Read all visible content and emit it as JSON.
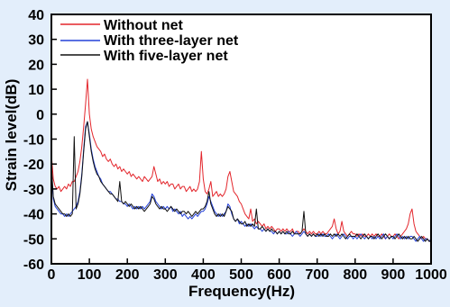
{
  "colors": {
    "background": "#e3eefb",
    "plot_background": "#ffffff",
    "axis": "#000000"
  },
  "chart_data": {
    "type": "line",
    "xlabel": "Frequency(Hz)",
    "ylabel": "Strain level(dB)",
    "xlim": [
      0,
      1000
    ],
    "ylim": [
      -60,
      40
    ],
    "xticks": [
      0,
      100,
      200,
      300,
      400,
      500,
      600,
      700,
      800,
      900,
      1000
    ],
    "yticks": [
      40,
      30,
      20,
      10,
      0,
      -10,
      -20,
      -30,
      -40,
      -50,
      -60
    ],
    "grid": false,
    "legend": "top-left",
    "x": [
      0,
      5,
      10,
      15,
      20,
      25,
      30,
      35,
      40,
      45,
      50,
      55,
      60,
      65,
      70,
      75,
      80,
      85,
      90,
      95,
      100,
      105,
      110,
      115,
      120,
      125,
      130,
      135,
      140,
      145,
      150,
      155,
      160,
      165,
      170,
      175,
      180,
      185,
      190,
      195,
      200,
      205,
      210,
      215,
      220,
      225,
      230,
      235,
      240,
      245,
      250,
      255,
      260,
      265,
      270,
      275,
      280,
      285,
      290,
      295,
      300,
      305,
      310,
      315,
      320,
      325,
      330,
      335,
      340,
      345,
      350,
      355,
      360,
      365,
      370,
      375,
      380,
      385,
      390,
      395,
      400,
      405,
      410,
      415,
      420,
      425,
      430,
      435,
      440,
      445,
      450,
      455,
      460,
      465,
      470,
      475,
      480,
      485,
      490,
      495,
      500,
      505,
      510,
      515,
      520,
      525,
      530,
      535,
      540,
      545,
      550,
      555,
      560,
      565,
      570,
      575,
      580,
      585,
      590,
      595,
      600,
      605,
      610,
      615,
      620,
      625,
      630,
      635,
      640,
      645,
      650,
      655,
      660,
      665,
      670,
      675,
      680,
      685,
      690,
      695,
      700,
      705,
      710,
      715,
      720,
      725,
      730,
      735,
      740,
      745,
      750,
      755,
      760,
      765,
      770,
      775,
      780,
      785,
      790,
      795,
      800,
      805,
      810,
      815,
      820,
      825,
      830,
      835,
      840,
      845,
      850,
      855,
      860,
      865,
      870,
      875,
      880,
      885,
      890,
      895,
      900,
      905,
      910,
      915,
      920,
      925,
      930,
      935,
      940,
      945,
      950,
      955,
      960,
      965,
      970,
      975,
      980,
      985,
      990,
      995,
      1000
    ],
    "series": [
      {
        "name": "Without net",
        "color": "#e3262c",
        "values": [
          -16,
          -26,
          -29,
          -30,
          -29,
          -31,
          -30,
          -29,
          -30,
          -28,
          -29,
          -27,
          -27,
          -25,
          -23,
          -19,
          -13,
          -5,
          4,
          14,
          0,
          -6,
          -9,
          -11,
          -13,
          -14,
          -15,
          -17,
          -16,
          -18,
          -19,
          -18,
          -20,
          -21,
          -20,
          -22,
          -21,
          -23,
          -22,
          -23,
          -24,
          -23,
          -25,
          -24,
          -25,
          -26,
          -25,
          -26,
          -27,
          -25,
          -26,
          -27,
          -26,
          -25,
          -21,
          -24,
          -27,
          -26,
          -28,
          -27,
          -28,
          -27,
          -29,
          -28,
          -28,
          -30,
          -29,
          -28,
          -30,
          -29,
          -29,
          -31,
          -30,
          -29,
          -31,
          -30,
          -31,
          -30,
          -27,
          -15,
          -26,
          -31,
          -32,
          -30,
          -27,
          -33,
          -32,
          -31,
          -33,
          -32,
          -33,
          -32,
          -30,
          -25,
          -23,
          -27,
          -31,
          -32,
          -33,
          -35,
          -36,
          -38,
          -40,
          -41,
          -42,
          -38,
          -43,
          -42,
          -44,
          -43,
          -44,
          -45,
          -44,
          -46,
          -45,
          -46,
          -45,
          -46,
          -47,
          -46,
          -46,
          -47,
          -46,
          -47,
          -46,
          -47,
          -47,
          -46,
          -48,
          -47,
          -47,
          -48,
          -47,
          -46,
          -47,
          -48,
          -47,
          -48,
          -47,
          -48,
          -48,
          -47,
          -48,
          -47,
          -48,
          -48,
          -47,
          -46,
          -45,
          -42,
          -46,
          -48,
          -47,
          -43,
          -47,
          -48,
          -49,
          -48,
          -47,
          -48,
          -48,
          -49,
          -48,
          -49,
          -48,
          -49,
          -49,
          -48,
          -49,
          -48,
          -49,
          -48,
          -49,
          -49,
          -48,
          -49,
          -50,
          -49,
          -48,
          -49,
          -49,
          -48,
          -49,
          -50,
          -49,
          -48,
          -47,
          -46,
          -44,
          -40,
          -38,
          -44,
          -47,
          -48,
          -49,
          -50,
          -49,
          -50,
          -50,
          -51,
          -50
        ]
      },
      {
        "name": "With three-layer net",
        "color": "#2340d8",
        "values": [
          -22,
          -34,
          -37,
          -38,
          -39,
          -40,
          -40,
          -41,
          -40,
          -41,
          -40,
          -39,
          -38,
          -37,
          -35,
          -31,
          -24,
          -14,
          -5,
          -3,
          -8,
          -14,
          -18,
          -21,
          -23,
          -25,
          -26,
          -28,
          -29,
          -30,
          -31,
          -31,
          -32,
          -33,
          -34,
          -34,
          -35,
          -35,
          -36,
          -36,
          -37,
          -36,
          -37,
          -38,
          -37,
          -38,
          -37,
          -38,
          -37,
          -38,
          -37,
          -36,
          -35,
          -32,
          -33,
          -35,
          -36,
          -37,
          -38,
          -37,
          -38,
          -37,
          -38,
          -37,
          -39,
          -38,
          -39,
          -40,
          -39,
          -41,
          -40,
          -41,
          -42,
          -41,
          -42,
          -41,
          -40,
          -41,
          -40,
          -39,
          -39,
          -38,
          -36,
          -33,
          -35,
          -37,
          -39,
          -40,
          -41,
          -40,
          -41,
          -40,
          -39,
          -36,
          -37,
          -40,
          -42,
          -43,
          -42,
          -44,
          -43,
          -44,
          -45,
          -44,
          -45,
          -44,
          -45,
          -46,
          -45,
          -46,
          -46,
          -47,
          -46,
          -47,
          -46,
          -47,
          -47,
          -48,
          -47,
          -48,
          -47,
          -48,
          -47,
          -48,
          -48,
          -47,
          -48,
          -49,
          -48,
          -47,
          -48,
          -49,
          -48,
          -47,
          -48,
          -49,
          -48,
          -49,
          -48,
          -49,
          -49,
          -48,
          -49,
          -48,
          -49,
          -49,
          -48,
          -49,
          -50,
          -49,
          -48,
          -49,
          -50,
          -49,
          -48,
          -49,
          -50,
          -49,
          -49,
          -50,
          -49,
          -50,
          -49,
          -48,
          -49,
          -50,
          -49,
          -50,
          -49,
          -50,
          -49,
          -50,
          -49,
          -50,
          -49,
          -48,
          -50,
          -49,
          -50,
          -49,
          -50,
          -49,
          -48,
          -49,
          -50,
          -49,
          -50,
          -49,
          -50,
          -49,
          -49,
          -50,
          -51,
          -50,
          -49,
          -50,
          -51,
          -50,
          -50,
          -51,
          -50
        ]
      },
      {
        "name": "With five-layer net",
        "color": "#111111",
        "values": [
          -20,
          -33,
          -36,
          -37,
          -38,
          -39,
          -40,
          -40,
          -41,
          -40,
          -41,
          -40,
          -9,
          -38,
          -36,
          -32,
          -25,
          -15,
          -6,
          -3,
          -9,
          -15,
          -19,
          -22,
          -24,
          -25,
          -27,
          -28,
          -29,
          -30,
          -31,
          -32,
          -32,
          -33,
          -34,
          -35,
          -27,
          -35,
          -36,
          -35,
          -36,
          -37,
          -36,
          -37,
          -38,
          -37,
          -38,
          -37,
          -38,
          -39,
          -38,
          -37,
          -36,
          -33,
          -34,
          -36,
          -37,
          -38,
          -37,
          -38,
          -38,
          -39,
          -38,
          -37,
          -38,
          -39,
          -38,
          -39,
          -40,
          -39,
          -39,
          -40,
          -39,
          -40,
          -41,
          -40,
          -39,
          -40,
          -39,
          -38,
          -38,
          -37,
          -35,
          -31,
          -36,
          -38,
          -40,
          -41,
          -40,
          -41,
          -40,
          -41,
          -39,
          -37,
          -38,
          -39,
          -42,
          -43,
          -42,
          -43,
          -44,
          -44,
          -43,
          -45,
          -44,
          -45,
          -44,
          -45,
          -38,
          -46,
          -46,
          -45,
          -46,
          -47,
          -46,
          -47,
          -46,
          -47,
          -47,
          -48,
          -47,
          -48,
          -47,
          -48,
          -47,
          -48,
          -48,
          -47,
          -48,
          -48,
          -48,
          -48,
          -47,
          -39,
          -48,
          -49,
          -48,
          -49,
          -48,
          -49,
          -48,
          -49,
          -48,
          -49,
          -48,
          -49,
          -49,
          -48,
          -49,
          -48,
          -49,
          -48,
          -49,
          -48,
          -49,
          -50,
          -49,
          -48,
          -49,
          -49,
          -49,
          -48,
          -49,
          -50,
          -49,
          -48,
          -49,
          -50,
          -49,
          -49,
          -50,
          -49,
          -48,
          -49,
          -50,
          -49,
          -48,
          -49,
          -50,
          -49,
          -49,
          -50,
          -49,
          -48,
          -49,
          -50,
          -49,
          -50,
          -49,
          -50,
          -50,
          -49,
          -50,
          -51,
          -50,
          -49,
          -50,
          -51,
          -50,
          -51,
          -51
        ]
      }
    ]
  }
}
